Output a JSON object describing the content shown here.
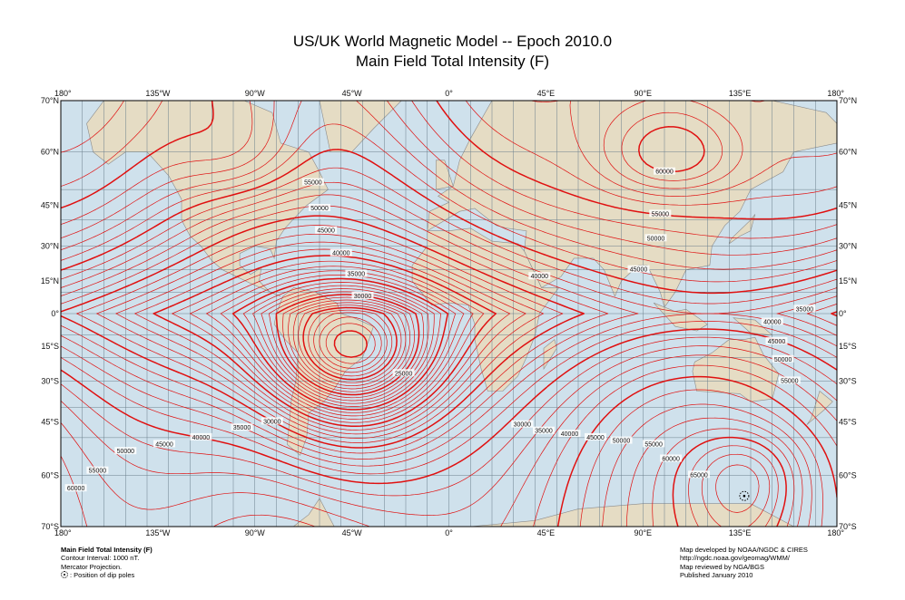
{
  "title": {
    "line1": "US/UK World Magnetic Model -- Epoch 2010.0",
    "line2": "Main Field Total Intensity (F)"
  },
  "axes": {
    "lon_ticks": [
      "180°",
      "135°W",
      "90°W",
      "45°W",
      "0°",
      "45°E",
      "90°E",
      "135°E",
      "180°"
    ],
    "lon_values": [
      -180,
      -135,
      -90,
      -45,
      0,
      45,
      90,
      135,
      180
    ],
    "lat_ticks": [
      "70°N",
      "60°N",
      "45°N",
      "30°N",
      "15°N",
      "0°",
      "15°S",
      "30°S",
      "45°S",
      "60°S",
      "70°S"
    ],
    "lat_values": [
      70,
      60,
      45,
      30,
      15,
      0,
      -15,
      -30,
      -45,
      -60,
      -70
    ],
    "projection": "mercator",
    "grid_step_degrees": 10
  },
  "contours": {
    "interval_nT": 1000,
    "major_every_nT": 5000,
    "color": "#e01010",
    "labels": [
      {
        "text": "60000",
        "lon": 100,
        "lat": 55
      },
      {
        "text": "55000",
        "lon": 98,
        "lat": 42
      },
      {
        "text": "50000",
        "lon": 96,
        "lat": 33
      },
      {
        "text": "45000",
        "lon": 88,
        "lat": 20
      },
      {
        "text": "40000",
        "lon": 42,
        "lat": 17
      },
      {
        "text": "55000",
        "lon": -63,
        "lat": 52
      },
      {
        "text": "50000",
        "lon": -60,
        "lat": 44
      },
      {
        "text": "45000",
        "lon": -57,
        "lat": 36
      },
      {
        "text": "40000",
        "lon": -50,
        "lat": 27
      },
      {
        "text": "35000",
        "lon": -43,
        "lat": 18
      },
      {
        "text": "30000",
        "lon": -40,
        "lat": 8
      },
      {
        "text": "25000",
        "lon": -21,
        "lat": -27
      },
      {
        "text": "35000",
        "lon": 165,
        "lat": 2
      },
      {
        "text": "40000",
        "lon": 150,
        "lat": -4
      },
      {
        "text": "45000",
        "lon": 152,
        "lat": -13
      },
      {
        "text": "50000",
        "lon": 155,
        "lat": -21
      },
      {
        "text": "55000",
        "lon": 158,
        "lat": -30
      },
      {
        "text": "30000",
        "lon": 34,
        "lat": -46
      },
      {
        "text": "35000",
        "lon": 44,
        "lat": -48
      },
      {
        "text": "40000",
        "lon": 56,
        "lat": -49
      },
      {
        "text": "45000",
        "lon": 68,
        "lat": -50
      },
      {
        "text": "50000",
        "lon": 80,
        "lat": -51
      },
      {
        "text": "55000",
        "lon": 95,
        "lat": -52
      },
      {
        "text": "60000",
        "lon": 103,
        "lat": -56
      },
      {
        "text": "65000",
        "lon": 116,
        "lat": -60
      },
      {
        "text": "30000",
        "lon": -82,
        "lat": -45
      },
      {
        "text": "35000",
        "lon": -96,
        "lat": -47
      },
      {
        "text": "40000",
        "lon": -115,
        "lat": -50
      },
      {
        "text": "45000",
        "lon": -132,
        "lat": -52
      },
      {
        "text": "50000",
        "lon": -150,
        "lat": -54
      },
      {
        "text": "55000",
        "lon": -163,
        "lat": -59
      },
      {
        "text": "60000",
        "lon": -173,
        "lat": -63
      }
    ]
  },
  "dip_poles": [
    {
      "lon": 137,
      "lat": -64.5
    }
  ],
  "notes_left": {
    "heading": "Main Field Total Intensity (F)",
    "interval": "Contour Interval: 1000 nT.",
    "projection": "Mercator Projection.",
    "dip_legend": ": Position of dip poles"
  },
  "notes_right": {
    "developed": "Map developed by NOAA/NGDC & CIRES",
    "url": "http://ngdc.noaa.gov/geomag/WMM/",
    "reviewed": "Map reviewed by NGA/BGS",
    "published": "Published January 2010"
  }
}
